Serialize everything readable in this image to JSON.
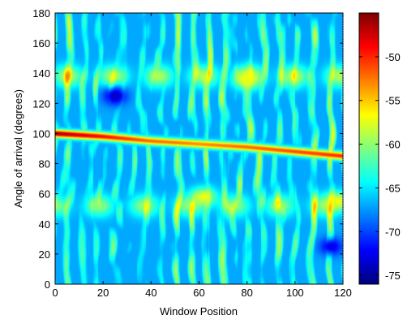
{
  "chart_data": {
    "type": "heatmap",
    "title": "",
    "xlabel": "Window Position",
    "ylabel": "Angle of arrival (degrees)",
    "xlim": [
      0,
      120
    ],
    "ylim": [
      0,
      180
    ],
    "x_ticks": [
      0,
      20,
      40,
      60,
      80,
      100,
      120
    ],
    "y_ticks": [
      0,
      20,
      40,
      60,
      80,
      100,
      120,
      140,
      160,
      180
    ],
    "colormap": "jet",
    "clim": [
      -76,
      -45
    ],
    "colorbar_ticks": [
      -50,
      -55,
      -60,
      -65,
      -70,
      -75
    ],
    "background_level": -67,
    "features": [
      {
        "kind": "ridge",
        "x": [
          0,
          20,
          40,
          60,
          80,
          100,
          120
        ],
        "y": [
          100,
          98,
          95,
          93,
          91,
          88,
          85
        ],
        "peak": [
          -46,
          -49,
          -52,
          -53,
          -52,
          -51,
          -50
        ]
      },
      {
        "kind": "band",
        "y_center": 138,
        "peak": -59,
        "extent_x": [
          0,
          120
        ]
      },
      {
        "kind": "band",
        "y_center": 52,
        "peak": -60,
        "extent_x": [
          0,
          120
        ]
      },
      {
        "kind": "hotspot",
        "x": 80,
        "y": 136,
        "value": -57
      },
      {
        "kind": "hotspot",
        "x": 62,
        "y": 58,
        "value": -57
      },
      {
        "kind": "hotspot",
        "x": 118,
        "y": 55,
        "value": -57
      },
      {
        "kind": "hotspot",
        "x": 25,
        "y": 125,
        "value": -74
      },
      {
        "kind": "hotspot",
        "x": 115,
        "y": 25,
        "value": -73
      }
    ]
  }
}
